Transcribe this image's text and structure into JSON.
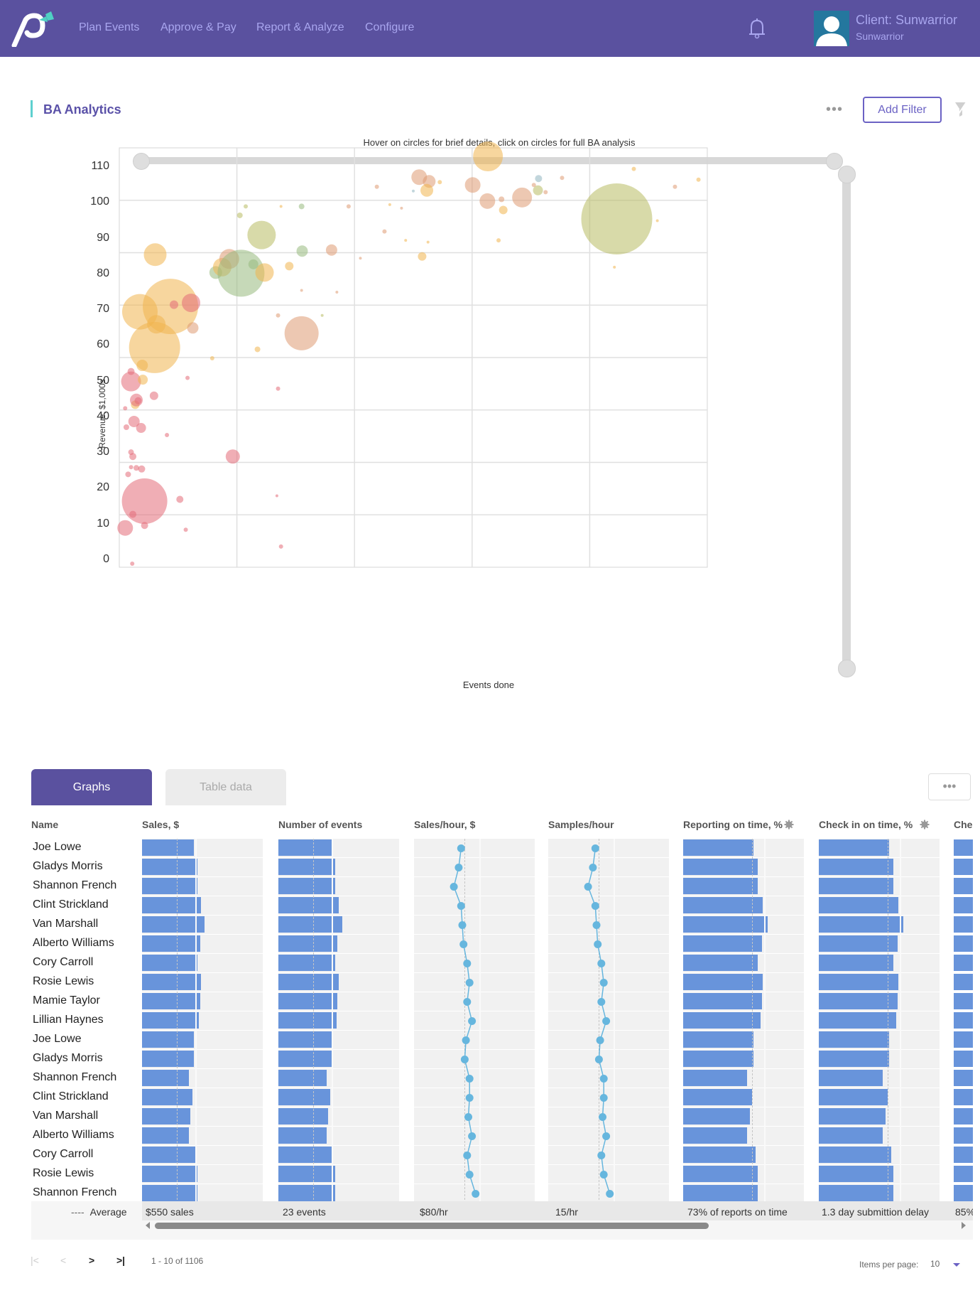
{
  "header": {
    "nav": [
      "Plan Events",
      "Approve & Pay",
      "Report & Analyze",
      "Configure"
    ],
    "client_title": "Client: Sunwarrior",
    "client_sub": "Sunwarrior",
    "icons": {
      "logo": "brand-logo",
      "bell": "bell-icon",
      "avatar": "user-avatar-icon"
    },
    "colors": {
      "bar": "#5a519f",
      "nav_text": "#a9a6ef",
      "logo_accent": "#4fd0c3"
    }
  },
  "section": {
    "title": "BA Analytics",
    "more_label": "•••",
    "add_filter_label": "Add Filter",
    "clear_filter_icon": "filter-clear-icon"
  },
  "chart_data": {
    "type": "scatter",
    "subtype": "bubble",
    "title": "Hover on circles for brief details, click on circles for full BA analysis",
    "xlabel": "Events done",
    "ylabel": "Revenue, $1,000s",
    "xlim": [
      0,
      100
    ],
    "ylim": [
      -2,
      115.4
    ],
    "x_gridlines": 5,
    "y_gridlines": 8,
    "yticks": [
      0,
      10,
      20,
      30,
      40,
      50,
      60,
      70,
      80,
      90,
      100,
      110
    ],
    "grid": true,
    "legend": "none",
    "palette": {
      "red": "#e36c78",
      "orange": "#f0b54e",
      "peach": "#de9a73",
      "green": "#97ba7d",
      "olive": "#b8bc62",
      "teal": "#8fb5bf"
    },
    "points": [
      {
        "x": 4.3,
        "y": 16.5,
        "r": 32,
        "c": "red"
      },
      {
        "x": 1.0,
        "y": 9.0,
        "r": 11,
        "c": "red"
      },
      {
        "x": 4.3,
        "y": 9.7,
        "r": 5,
        "c": "red"
      },
      {
        "x": 2.3,
        "y": 12.8,
        "r": 5,
        "c": "red"
      },
      {
        "x": 3.8,
        "y": 25.5,
        "r": 5,
        "c": "red"
      },
      {
        "x": 2.0,
        "y": 26.0,
        "r": 3,
        "c": "red"
      },
      {
        "x": 1.5,
        "y": 24.0,
        "r": 4,
        "c": "red"
      },
      {
        "x": 2.9,
        "y": 25.8,
        "r": 4,
        "c": "red"
      },
      {
        "x": 2.3,
        "y": 29.0,
        "r": 5,
        "c": "red"
      },
      {
        "x": 2.0,
        "y": 30.2,
        "r": 4,
        "c": "red"
      },
      {
        "x": 3.7,
        "y": 37.0,
        "r": 7,
        "c": "red"
      },
      {
        "x": 1.2,
        "y": 37.2,
        "r": 4,
        "c": "red"
      },
      {
        "x": 2.5,
        "y": 38.8,
        "r": 8,
        "c": "red"
      },
      {
        "x": 1.0,
        "y": 42.5,
        "r": 3,
        "c": "red"
      },
      {
        "x": 2.7,
        "y": 43.5,
        "r": 6,
        "c": "orange"
      },
      {
        "x": 2.9,
        "y": 44.8,
        "r": 9,
        "c": "red"
      },
      {
        "x": 3.2,
        "y": 44.6,
        "r": 5,
        "c": "red"
      },
      {
        "x": 5.9,
        "y": 46.0,
        "r": 6,
        "c": "red"
      },
      {
        "x": 2.0,
        "y": 50.0,
        "r": 14,
        "c": "red"
      },
      {
        "x": 4.0,
        "y": 50.5,
        "r": 7,
        "c": "orange"
      },
      {
        "x": 2.0,
        "y": 52.8,
        "r": 5,
        "c": "red"
      },
      {
        "x": 6.0,
        "y": 59.5,
        "r": 36,
        "c": "orange"
      },
      {
        "x": 3.9,
        "y": 54.5,
        "r": 8,
        "c": "orange"
      },
      {
        "x": 3.5,
        "y": 69.5,
        "r": 25,
        "c": "orange"
      },
      {
        "x": 8.7,
        "y": 71.0,
        "r": 39,
        "c": "orange"
      },
      {
        "x": 6.3,
        "y": 66.0,
        "r": 13,
        "c": "orange"
      },
      {
        "x": 12.5,
        "y": 65.0,
        "r": 8,
        "c": "peach"
      },
      {
        "x": 12.2,
        "y": 72.0,
        "r": 13,
        "c": "red"
      },
      {
        "x": 9.3,
        "y": 71.5,
        "r": 6,
        "c": "red"
      },
      {
        "x": 6.1,
        "y": 85.5,
        "r": 16,
        "c": "orange"
      },
      {
        "x": 16.4,
        "y": 80.5,
        "r": 9,
        "c": "green"
      },
      {
        "x": 17.5,
        "y": 82.0,
        "r": 13,
        "c": "orange"
      },
      {
        "x": 18.7,
        "y": 84.3,
        "r": 14,
        "c": "peach"
      },
      {
        "x": 20.7,
        "y": 80.3,
        "r": 33,
        "c": "green"
      },
      {
        "x": 24.2,
        "y": 91.0,
        "r": 20,
        "c": "olive"
      },
      {
        "x": 24.7,
        "y": 80.5,
        "r": 13,
        "c": "orange"
      },
      {
        "x": 22.8,
        "y": 82.8,
        "r": 7,
        "c": "green"
      },
      {
        "x": 31.0,
        "y": 63.5,
        "r": 24,
        "c": "peach"
      },
      {
        "x": 31.1,
        "y": 86.5,
        "r": 8,
        "c": "green"
      },
      {
        "x": 36.1,
        "y": 86.8,
        "r": 8,
        "c": "peach"
      },
      {
        "x": 28.9,
        "y": 82.3,
        "r": 6,
        "c": "orange"
      },
      {
        "x": 19.3,
        "y": 29.0,
        "r": 10,
        "c": "red"
      },
      {
        "x": 23.5,
        "y": 59.0,
        "r": 4,
        "c": "orange"
      },
      {
        "x": 15.8,
        "y": 56.5,
        "r": 3,
        "c": "orange"
      },
      {
        "x": 27.0,
        "y": 48.0,
        "r": 3,
        "c": "red"
      },
      {
        "x": 27.5,
        "y": 3.8,
        "r": 3,
        "c": "red"
      },
      {
        "x": 26.8,
        "y": 18.0,
        "r": 2,
        "c": "red"
      },
      {
        "x": 11.3,
        "y": 8.5,
        "r": 3,
        "c": "red"
      },
      {
        "x": 11.6,
        "y": 51.0,
        "r": 3,
        "c": "red"
      },
      {
        "x": 8.1,
        "y": 35.0,
        "r": 3,
        "c": "red"
      },
      {
        "x": 2.2,
        "y": -1.0,
        "r": 3,
        "c": "red"
      },
      {
        "x": 10.3,
        "y": 17.0,
        "r": 5,
        "c": "red"
      },
      {
        "x": 20.5,
        "y": 96.5,
        "r": 4,
        "c": "olive"
      },
      {
        "x": 21.5,
        "y": 99.0,
        "r": 3,
        "c": "olive"
      },
      {
        "x": 27.5,
        "y": 99.0,
        "r": 2,
        "c": "orange"
      },
      {
        "x": 31.0,
        "y": 99.0,
        "r": 4,
        "c": "green"
      },
      {
        "x": 39.0,
        "y": 99.0,
        "r": 3,
        "c": "peach"
      },
      {
        "x": 27.0,
        "y": 68.5,
        "r": 3,
        "c": "peach"
      },
      {
        "x": 34.5,
        "y": 68.5,
        "r": 2,
        "c": "olive"
      },
      {
        "x": 37.0,
        "y": 75.0,
        "r": 2,
        "c": "peach"
      },
      {
        "x": 31.0,
        "y": 75.5,
        "r": 2,
        "c": "peach"
      },
      {
        "x": 41.0,
        "y": 84.5,
        "r": 2,
        "c": "peach"
      },
      {
        "x": 45.1,
        "y": 92.0,
        "r": 3,
        "c": "peach"
      },
      {
        "x": 43.8,
        "y": 104.5,
        "r": 3,
        "c": "peach"
      },
      {
        "x": 46.0,
        "y": 99.5,
        "r": 2,
        "c": "orange"
      },
      {
        "x": 48.0,
        "y": 98.5,
        "r": 2,
        "c": "peach"
      },
      {
        "x": 48.7,
        "y": 89.5,
        "r": 2,
        "c": "orange"
      },
      {
        "x": 52.5,
        "y": 89.0,
        "r": 2,
        "c": "orange"
      },
      {
        "x": 51.5,
        "y": 85.0,
        "r": 6,
        "c": "orange"
      },
      {
        "x": 51.0,
        "y": 107.2,
        "r": 11,
        "c": "peach"
      },
      {
        "x": 52.7,
        "y": 106.0,
        "r": 9,
        "c": "peach"
      },
      {
        "x": 52.3,
        "y": 103.5,
        "r": 9,
        "c": "orange"
      },
      {
        "x": 50.0,
        "y": 103.3,
        "r": 2,
        "c": "teal"
      },
      {
        "x": 54.5,
        "y": 105.8,
        "r": 3,
        "c": "orange"
      },
      {
        "x": 62.7,
        "y": 113.0,
        "r": 21,
        "c": "orange"
      },
      {
        "x": 60.1,
        "y": 105.0,
        "r": 11,
        "c": "peach"
      },
      {
        "x": 62.6,
        "y": 100.5,
        "r": 11,
        "c": "peach"
      },
      {
        "x": 65.0,
        "y": 101.0,
        "r": 4,
        "c": "peach"
      },
      {
        "x": 68.5,
        "y": 101.5,
        "r": 14,
        "c": "peach"
      },
      {
        "x": 65.3,
        "y": 98.0,
        "r": 6,
        "c": "orange"
      },
      {
        "x": 64.5,
        "y": 89.5,
        "r": 3,
        "c": "orange"
      },
      {
        "x": 71.3,
        "y": 106.8,
        "r": 5,
        "c": "teal"
      },
      {
        "x": 71.2,
        "y": 103.5,
        "r": 7,
        "c": "olive"
      },
      {
        "x": 72.5,
        "y": 103.0,
        "r": 3,
        "c": "peach"
      },
      {
        "x": 70.5,
        "y": 105.0,
        "r": 3,
        "c": "peach"
      },
      {
        "x": 75.3,
        "y": 107.0,
        "r": 3,
        "c": "peach"
      },
      {
        "x": 84.6,
        "y": 95.5,
        "r": 50,
        "c": "olive"
      },
      {
        "x": 84.2,
        "y": 82.0,
        "r": 2,
        "c": "orange"
      },
      {
        "x": 91.5,
        "y": 95.0,
        "r": 2,
        "c": "orange"
      },
      {
        "x": 87.5,
        "y": 109.5,
        "r": 3,
        "c": "orange"
      },
      {
        "x": 94.5,
        "y": 104.5,
        "r": 3,
        "c": "peach"
      },
      {
        "x": 98.5,
        "y": 106.5,
        "r": 3,
        "c": "orange"
      }
    ]
  },
  "tabs": {
    "active": "Graphs",
    "inactive": "Table data",
    "more_label": "•••"
  },
  "table": {
    "columns": [
      {
        "key": "name",
        "label": "Name"
      },
      {
        "key": "sales",
        "label": "Sales, $"
      },
      {
        "key": "events",
        "label": "Number of events"
      },
      {
        "key": "sales_hour",
        "label": "Sales/hour, $"
      },
      {
        "key": "samples_hour",
        "label": "Samples/hour"
      },
      {
        "key": "reporting",
        "label": "Reporting on time, %",
        "gear": true
      },
      {
        "key": "checkin",
        "label": "Check in on time, %",
        "gear": true
      },
      {
        "key": "next",
        "label": "Che"
      }
    ],
    "rows": [
      {
        "name": "Joe Lowe",
        "sales": 0.43,
        "events": 0.44,
        "sales_hour": 0.39,
        "samples_hour": 0.39,
        "reporting": 0.58,
        "checkin": 0.58
      },
      {
        "name": "Gladys Morris",
        "sales": 0.46,
        "events": 0.47,
        "sales_hour": 0.37,
        "samples_hour": 0.37,
        "reporting": 0.62,
        "checkin": 0.62
      },
      {
        "name": "Shannon French",
        "sales": 0.46,
        "events": 0.47,
        "sales_hour": 0.33,
        "samples_hour": 0.33,
        "reporting": 0.62,
        "checkin": 0.62
      },
      {
        "name": "Clint Strickland",
        "sales": 0.49,
        "events": 0.5,
        "sales_hour": 0.39,
        "samples_hour": 0.39,
        "reporting": 0.66,
        "checkin": 0.66
      },
      {
        "name": "Van Marshall",
        "sales": 0.52,
        "events": 0.53,
        "sales_hour": 0.4,
        "samples_hour": 0.4,
        "reporting": 0.7,
        "checkin": 0.7
      },
      {
        "name": "Alberto Williams",
        "sales": 0.48,
        "events": 0.49,
        "sales_hour": 0.41,
        "samples_hour": 0.41,
        "reporting": 0.65,
        "checkin": 0.65
      },
      {
        "name": "Cory Carroll",
        "sales": 0.46,
        "events": 0.47,
        "sales_hour": 0.44,
        "samples_hour": 0.44,
        "reporting": 0.62,
        "checkin": 0.62
      },
      {
        "name": "Rosie Lewis",
        "sales": 0.49,
        "events": 0.5,
        "sales_hour": 0.46,
        "samples_hour": 0.46,
        "reporting": 0.66,
        "checkin": 0.66
      },
      {
        "name": "Mamie Taylor",
        "sales": 0.48,
        "events": 0.49,
        "sales_hour": 0.44,
        "samples_hour": 0.44,
        "reporting": 0.65,
        "checkin": 0.65
      },
      {
        "name": "Lillian Haynes",
        "sales": 0.47,
        "events": 0.48,
        "sales_hour": 0.48,
        "samples_hour": 0.48,
        "reporting": 0.64,
        "checkin": 0.64
      },
      {
        "name": "Joe Lowe",
        "sales": 0.43,
        "events": 0.44,
        "sales_hour": 0.43,
        "samples_hour": 0.43,
        "reporting": 0.58,
        "checkin": 0.58
      },
      {
        "name": "Gladys Morris",
        "sales": 0.43,
        "events": 0.44,
        "sales_hour": 0.42,
        "samples_hour": 0.42,
        "reporting": 0.58,
        "checkin": 0.58
      },
      {
        "name": "Shannon French",
        "sales": 0.39,
        "events": 0.4,
        "sales_hour": 0.46,
        "samples_hour": 0.46,
        "reporting": 0.53,
        "checkin": 0.53
      },
      {
        "name": "Clint Strickland",
        "sales": 0.42,
        "events": 0.43,
        "sales_hour": 0.46,
        "samples_hour": 0.46,
        "reporting": 0.57,
        "checkin": 0.57
      },
      {
        "name": "Van Marshall",
        "sales": 0.4,
        "events": 0.41,
        "sales_hour": 0.45,
        "samples_hour": 0.45,
        "reporting": 0.55,
        "checkin": 0.55
      },
      {
        "name": "Alberto Williams",
        "sales": 0.39,
        "events": 0.4,
        "sales_hour": 0.48,
        "samples_hour": 0.48,
        "reporting": 0.53,
        "checkin": 0.53
      },
      {
        "name": "Cory Carroll",
        "sales": 0.44,
        "events": 0.45,
        "sales_hour": 0.44,
        "samples_hour": 0.44,
        "reporting": 0.6,
        "checkin": 0.6
      },
      {
        "name": "Rosie Lewis",
        "sales": 0.46,
        "events": 0.47,
        "sales_hour": 0.46,
        "samples_hour": 0.46,
        "reporting": 0.62,
        "checkin": 0.62
      },
      {
        "name": "Shannon French",
        "sales": 0.46,
        "events": 0.47,
        "sales_hour": 0.51,
        "samples_hour": 0.51,
        "reporting": 0.62,
        "checkin": 0.62
      }
    ],
    "average_marker": 0.4,
    "average_label": "Average",
    "average_dashes": "----",
    "averages": [
      "$550 sales",
      "23 events",
      "$80/hr",
      "15/hr",
      "73% of reports on time",
      "1.3 day submittion delay",
      "85%"
    ],
    "bar_color": "#6894db",
    "dot_color": "#66b6de"
  },
  "pagination": {
    "first": "|<",
    "prev": "<",
    "next": ">",
    "last": ">|",
    "range": "1 - 10 of 1106",
    "items_per_page_label": "Items per page:",
    "items_per_page": "10"
  }
}
